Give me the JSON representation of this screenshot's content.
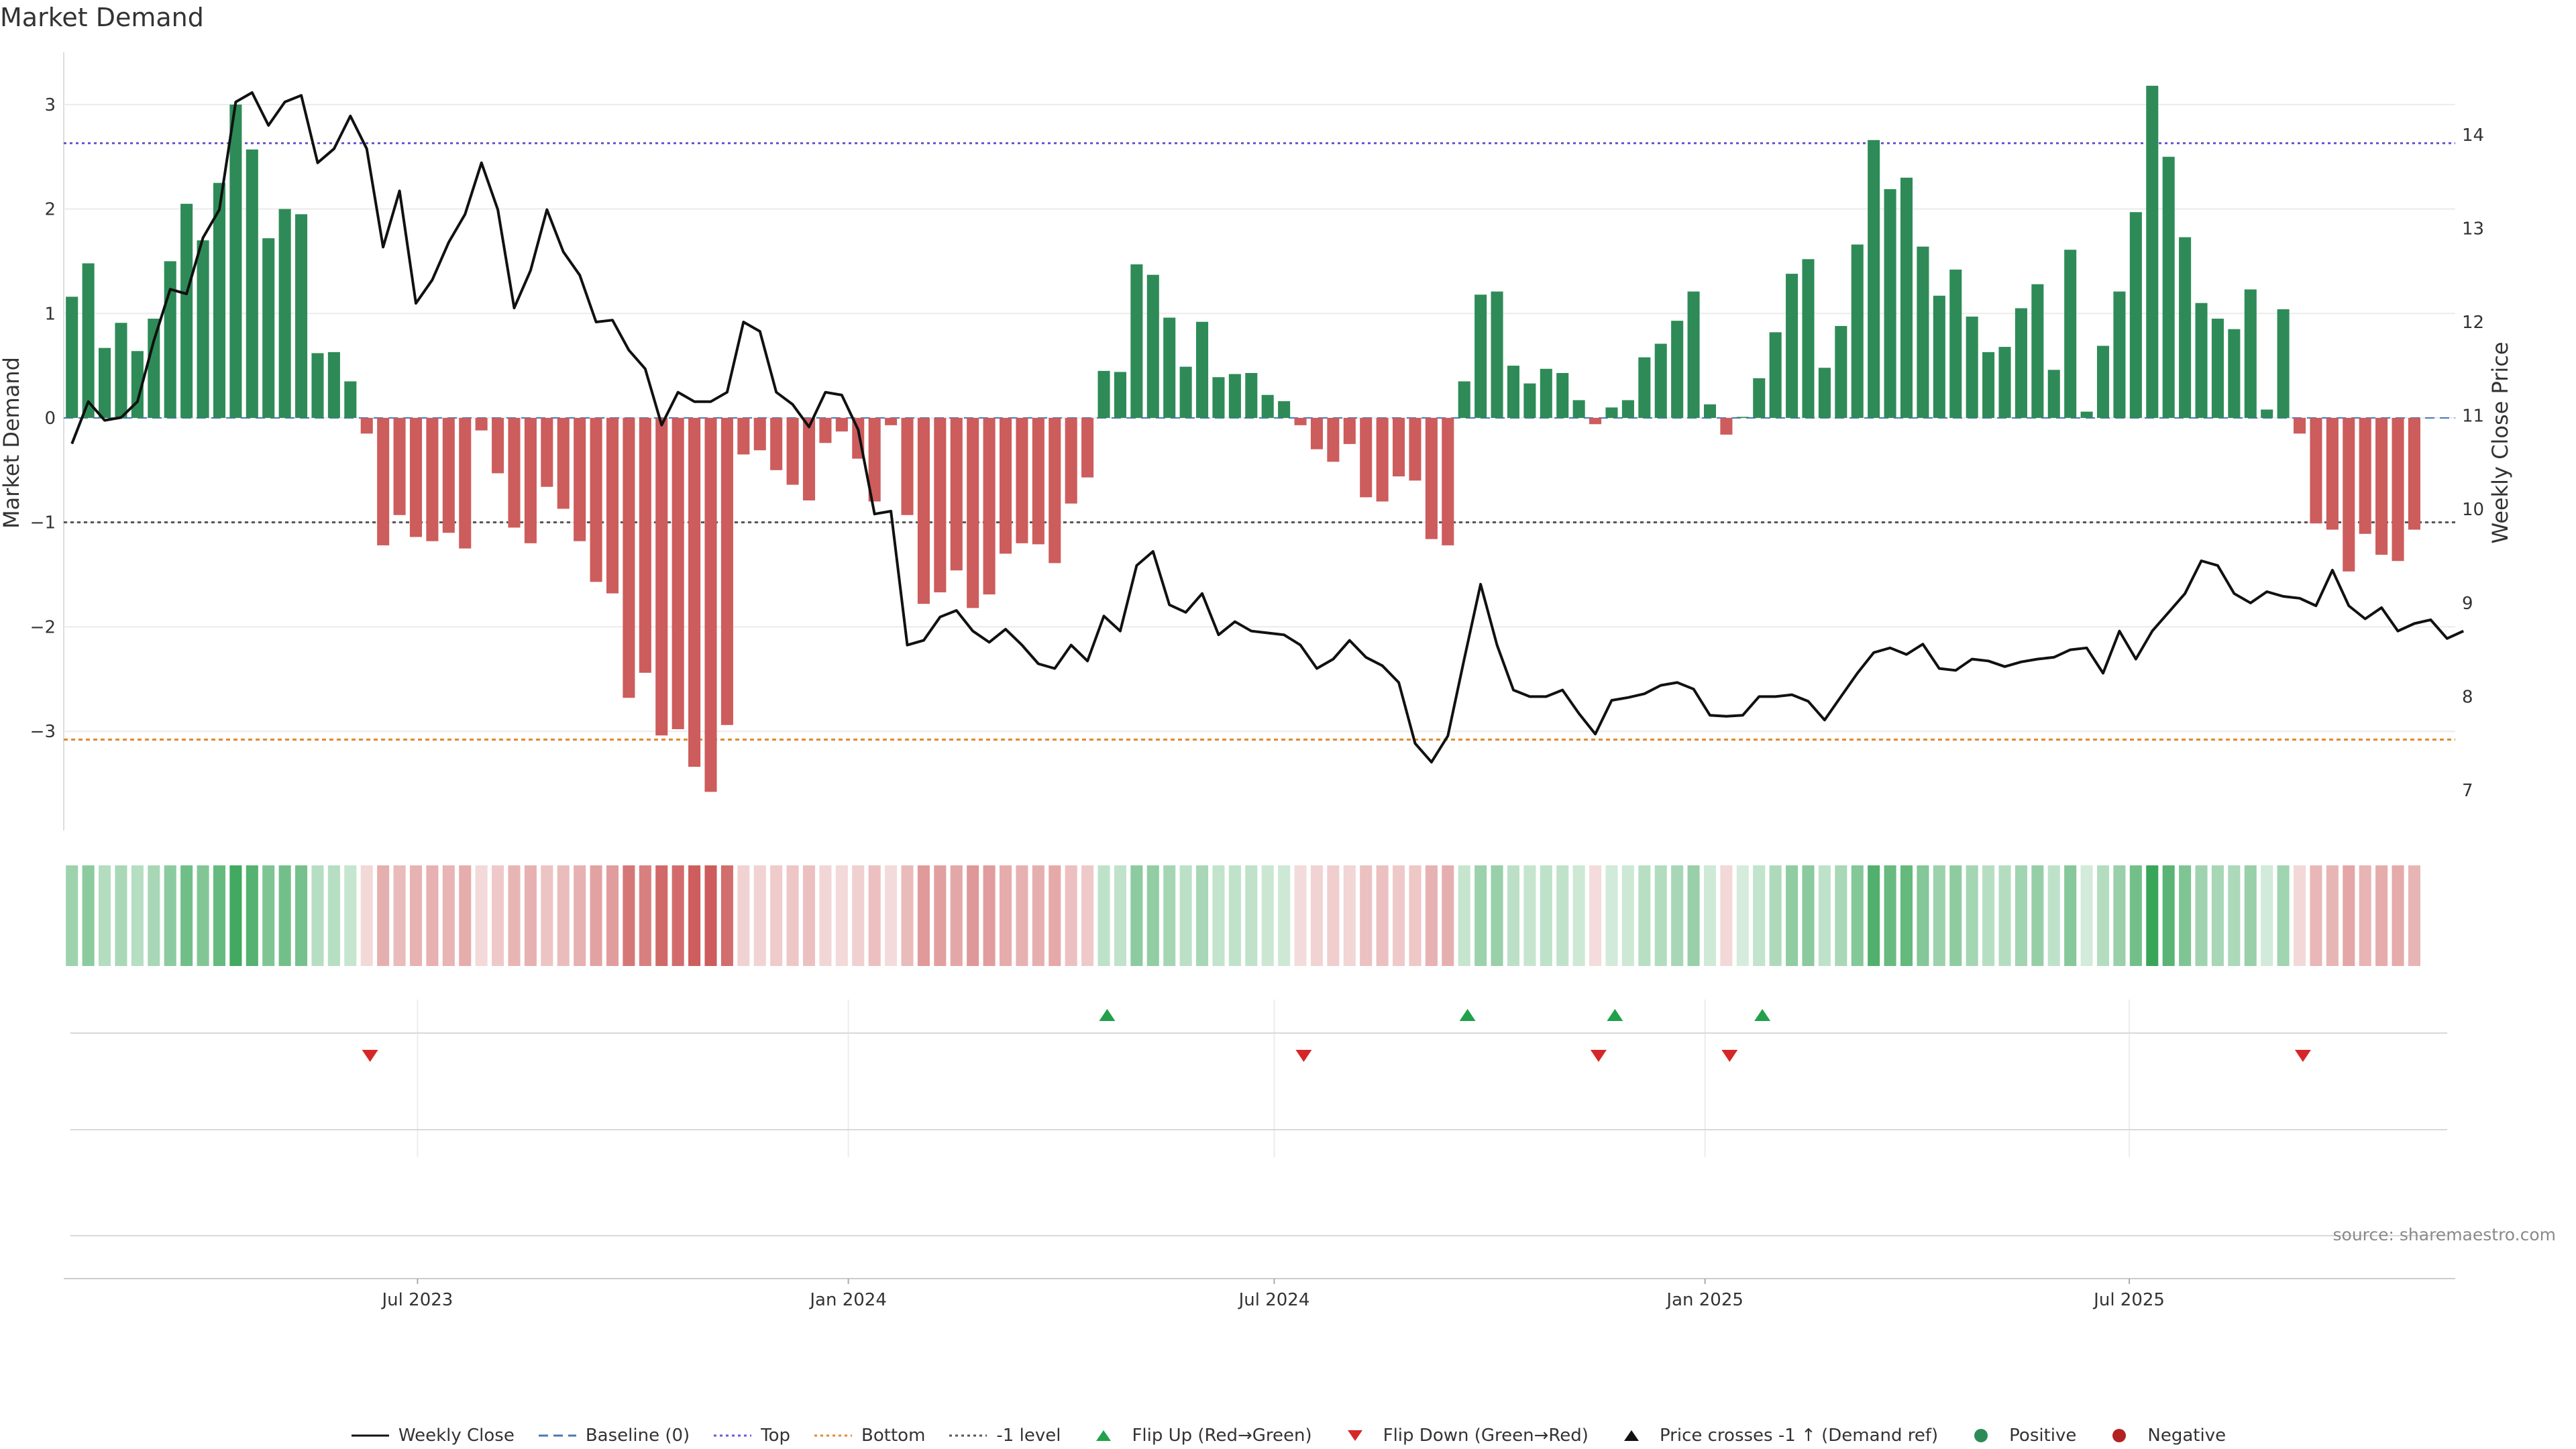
{
  "title": "Market Demand",
  "source": "source: sharemaestro.com",
  "colors": {
    "positive": "#2e8b57",
    "negative": "#cd5c5c",
    "price": "#111111",
    "top": "#6a5acd",
    "bottom": "#e08a2c",
    "minus1": "#555555",
    "flip_up": "#22a04b",
    "flip_down": "#d62728",
    "grid": "#ebebeb"
  },
  "legend": [
    {
      "name": "legend-weekly-close",
      "label": "Weekly Close",
      "kind": "line-solid",
      "color": "#111111"
    },
    {
      "name": "legend-baseline",
      "label": "Baseline (0)",
      "kind": "line-dashed",
      "color": "#4a78b5"
    },
    {
      "name": "legend-top",
      "label": "Top",
      "kind": "line-dotted",
      "color": "#6a5acd"
    },
    {
      "name": "legend-bottom",
      "label": "Bottom",
      "kind": "line-dotted",
      "color": "#e08a2c"
    },
    {
      "name": "legend-minus1",
      "label": "-1 level",
      "kind": "line-dotted",
      "color": "#555555"
    },
    {
      "name": "legend-flip-up",
      "label": "Flip Up (Red→Green)",
      "kind": "tri-up",
      "color": "#22a04b"
    },
    {
      "name": "legend-flip-down",
      "label": "Flip Down (Green→Red)",
      "kind": "tri-down",
      "color": "#d62728"
    },
    {
      "name": "legend-price-cross",
      "label": "Price crosses -1 ↑ (Demand ref)",
      "kind": "tri-up",
      "color": "#111111"
    },
    {
      "name": "legend-positive",
      "label": "Positive",
      "kind": "dot",
      "color": "#2e8b57"
    },
    {
      "name": "legend-negative",
      "label": "Negative",
      "kind": "dot",
      "color": "#b22222"
    }
  ],
  "chart_data": {
    "type": "bar",
    "title": "Market Demand",
    "ylabel": "Market Demand",
    "y2label": "Weekly Close Price",
    "ylim": [
      -3.95,
      3.5
    ],
    "y2lim": [
      6.57,
      14.88
    ],
    "yticks": [
      -3,
      -2,
      -1,
      0,
      1,
      2,
      3
    ],
    "ytick_labels": [
      "−3",
      "−2",
      "−1",
      "0",
      "1",
      "2",
      "3"
    ],
    "y2ticks": [
      7,
      8,
      9,
      10,
      11,
      12,
      13,
      14
    ],
    "x_start_week": 0,
    "x_end_week": 145,
    "xticks": [
      {
        "label": "Jul 2023",
        "week": 21.1
      },
      {
        "label": "Jan 2024",
        "week": 47.4
      },
      {
        "label": "Jul 2024",
        "week": 73.4
      },
      {
        "label": "Jan 2025",
        "week": 99.7
      },
      {
        "label": "Jul 2025",
        "week": 125.6
      }
    ],
    "reference_lines": {
      "baseline": 0,
      "top": 2.63,
      "bottom": -3.08,
      "minus1": -1.0
    },
    "demand": [
      1.16,
      1.48,
      0.67,
      0.91,
      0.64,
      0.95,
      1.5,
      2.05,
      1.7,
      2.25,
      3.0,
      2.57,
      1.72,
      2.0,
      1.95,
      0.62,
      0.63,
      0.35,
      -0.15,
      -1.22,
      -0.93,
      -1.14,
      -1.18,
      -1.1,
      -1.25,
      -0.12,
      -0.53,
      -1.05,
      -1.2,
      -0.66,
      -0.87,
      -1.18,
      -1.57,
      -1.68,
      -2.68,
      -2.44,
      -3.04,
      -2.98,
      -3.34,
      -3.58,
      -2.94,
      -0.35,
      -0.31,
      -0.5,
      -0.64,
      -0.79,
      -0.24,
      -0.13,
      -0.39,
      -0.8,
      -0.07,
      -0.93,
      -1.78,
      -1.67,
      -1.46,
      -1.82,
      -1.69,
      -1.3,
      -1.2,
      -1.21,
      -1.39,
      -0.82,
      -0.57,
      0.45,
      0.44,
      1.47,
      1.37,
      0.96,
      0.49,
      0.92,
      0.39,
      0.42,
      0.43,
      0.22,
      0.16,
      -0.07,
      -0.3,
      -0.42,
      -0.25,
      -0.76,
      -0.8,
      -0.56,
      -0.6,
      -1.16,
      -1.22,
      0.35,
      1.18,
      1.21,
      0.5,
      0.33,
      0.47,
      0.43,
      0.17,
      -0.06,
      0.1,
      0.17,
      0.58,
      0.71,
      0.93,
      1.21,
      0.13,
      -0.16,
      0.01,
      0.38,
      0.82,
      1.38,
      1.52,
      0.48,
      0.88,
      1.66,
      2.66,
      2.19,
      2.3,
      1.64,
      1.17,
      1.42,
      0.97,
      0.63,
      0.68,
      1.05,
      1.28,
      0.46,
      1.61,
      0.06,
      0.69,
      1.21,
      1.97,
      3.18,
      2.5,
      1.73,
      1.1,
      0.95,
      0.85,
      1.23,
      0.08,
      1.04,
      -0.15,
      -1.01,
      -1.07,
      -1.47,
      -1.11,
      -1.31,
      -1.37,
      -1.07
    ],
    "price": [
      10.7,
      11.15,
      10.95,
      10.98,
      11.15,
      11.8,
      12.35,
      12.3,
      12.9,
      13.2,
      14.35,
      14.45,
      14.1,
      14.35,
      14.42,
      13.7,
      13.85,
      14.2,
      13.85,
      12.8,
      13.4,
      12.2,
      12.45,
      12.85,
      13.15,
      13.7,
      13.2,
      12.15,
      12.55,
      13.2,
      12.75,
      12.5,
      12.0,
      12.02,
      11.7,
      11.5,
      10.9,
      11.25,
      11.15,
      11.15,
      11.25,
      12.0,
      11.9,
      11.25,
      11.12,
      10.88,
      11.25,
      11.22,
      10.85,
      9.95,
      9.98,
      8.55,
      8.6,
      8.85,
      8.92,
      8.7,
      8.58,
      8.72,
      8.55,
      8.35,
      8.3,
      8.55,
      8.38,
      8.86,
      8.7,
      9.4,
      9.55,
      8.98,
      8.9,
      9.1,
      8.66,
      8.8,
      8.7,
      8.68,
      8.66,
      8.55,
      8.3,
      8.4,
      8.6,
      8.42,
      8.33,
      8.15,
      7.5,
      7.3,
      7.58,
      8.4,
      9.2,
      8.55,
      8.07,
      8.0,
      8.0,
      8.07,
      7.82,
      7.6,
      7.96,
      7.99,
      8.03,
      8.12,
      8.15,
      8.08,
      7.8,
      7.79,
      7.8,
      8.0,
      8.0,
      8.02,
      7.95,
      7.75,
      8.0,
      8.25,
      8.47,
      8.52,
      8.45,
      8.56,
      8.3,
      8.28,
      8.4,
      8.38,
      8.32,
      8.37,
      8.4,
      8.42,
      8.5,
      8.52,
      8.25,
      8.7,
      8.4,
      8.7,
      8.9,
      9.1,
      9.45,
      9.4,
      9.1,
      9.0,
      9.12,
      9.07,
      9.05,
      8.97,
      9.35,
      8.97,
      8.83,
      8.95,
      8.7,
      8.78,
      8.82,
      8.62,
      8.7
    ],
    "flip_up_weeks": [
      63.2,
      85.2,
      94.2,
      103.2
    ],
    "flip_down_weeks": [
      18.2,
      75.2,
      93.2,
      101.2,
      136.2
    ]
  }
}
